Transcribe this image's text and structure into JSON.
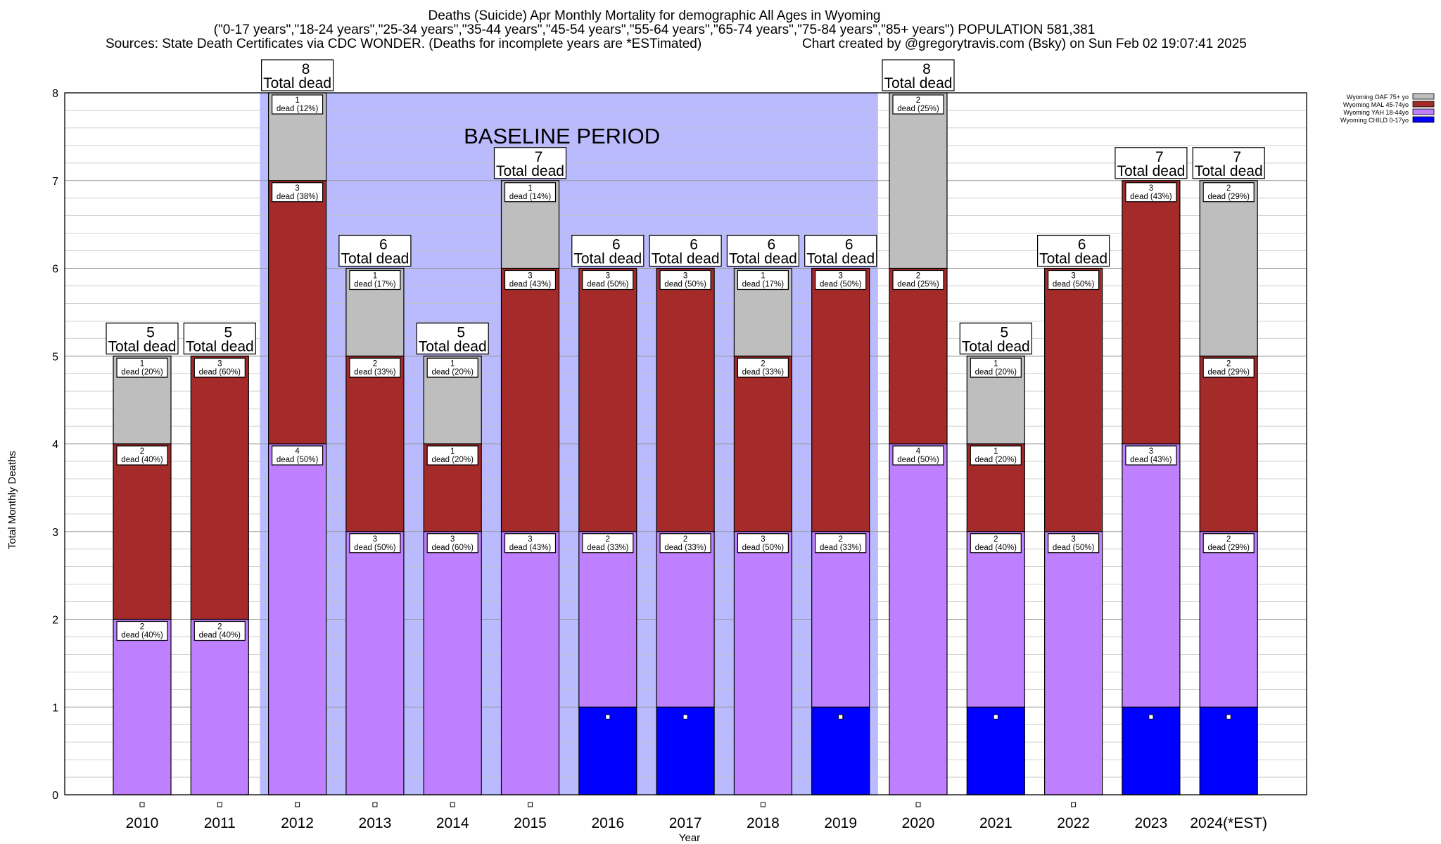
{
  "header": {
    "title": "Deaths (Suicide) Apr Monthly Mortality for demographic All Ages in Wyoming",
    "subtitle": "(\"0-17 years\",\"18-24 years\",\"25-34 years\",\"35-44 years\",\"45-54 years\",\"55-64 years\",\"65-74 years\",\"75-84 years\",\"85+ years\") POPULATION 581,381",
    "sources": "Sources: State Death Certificates via CDC WONDER. (Deaths for incomplete years are *ESTimated)",
    "credit": "Chart created by @gregorytravis.com (Bsky) on Sun Feb 02 19:07:41 2025"
  },
  "chart_data": {
    "type": "bar",
    "stacked": true,
    "xlabel": "Year",
    "ylabel": "Total Monthly Deaths",
    "ylim": [
      0,
      8
    ],
    "yticks": [
      "0",
      "1",
      "2",
      "3",
      "4",
      "5",
      "6",
      "7",
      "8"
    ],
    "grid": "horizontal",
    "legend_position": "top-right",
    "baseline_label": "BASELINE PERIOD",
    "baseline_range": [
      "2012",
      "2019"
    ],
    "total_label": "Total dead",
    "segment_label_word": "dead",
    "categories": [
      "2010",
      "2011",
      "2012",
      "2013",
      "2014",
      "2015",
      "2016",
      "2017",
      "2018",
      "2019",
      "2020",
      "2021",
      "2022",
      "2023",
      "2024(*EST)"
    ],
    "series": [
      {
        "name": "Wyoming CHILD 0-17yo",
        "color": "#0000ff",
        "values": [
          0,
          0,
          0,
          0,
          0,
          0,
          1,
          1,
          0,
          1,
          0,
          1,
          0,
          1,
          1
        ]
      },
      {
        "name": "Wyoming YAH 18-44yo",
        "color": "#bf80ff",
        "values": [
          2,
          2,
          4,
          3,
          3,
          3,
          2,
          2,
          3,
          2,
          4,
          2,
          3,
          3,
          2
        ]
      },
      {
        "name": "Wyoming MAL 45-74yo",
        "color": "#a52a2a",
        "values": [
          2,
          3,
          3,
          2,
          1,
          3,
          3,
          3,
          2,
          3,
          2,
          1,
          3,
          3,
          2
        ]
      },
      {
        "name": "Wyoming OAF 75+ yo",
        "color": "#bebebe",
        "values": [
          1,
          0,
          1,
          1,
          1,
          1,
          0,
          0,
          1,
          0,
          2,
          1,
          0,
          0,
          2
        ]
      }
    ],
    "percent_labels": [
      [
        "",
        "",
        "",
        "",
        "",
        "",
        "",
        "",
        "",
        "",
        "",
        "",
        "",
        "",
        ""
      ],
      [
        "40%",
        "40%",
        "50%",
        "50%",
        "60%",
        "43%",
        "33%",
        "33%",
        "50%",
        "33%",
        "50%",
        "40%",
        "50%",
        "43%",
        "29%"
      ],
      [
        "40%",
        "60%",
        "38%",
        "33%",
        "20%",
        "43%",
        "50%",
        "50%",
        "33%",
        "50%",
        "25%",
        "20%",
        "50%",
        "43%",
        "29%"
      ],
      [
        "20%",
        "",
        "12%",
        "17%",
        "20%",
        "14%",
        "",
        "",
        "17%",
        "",
        "25%",
        "20%",
        "",
        "",
        "29%"
      ]
    ],
    "totals": [
      5,
      5,
      8,
      6,
      5,
      7,
      6,
      6,
      6,
      6,
      8,
      5,
      6,
      7,
      7
    ]
  }
}
